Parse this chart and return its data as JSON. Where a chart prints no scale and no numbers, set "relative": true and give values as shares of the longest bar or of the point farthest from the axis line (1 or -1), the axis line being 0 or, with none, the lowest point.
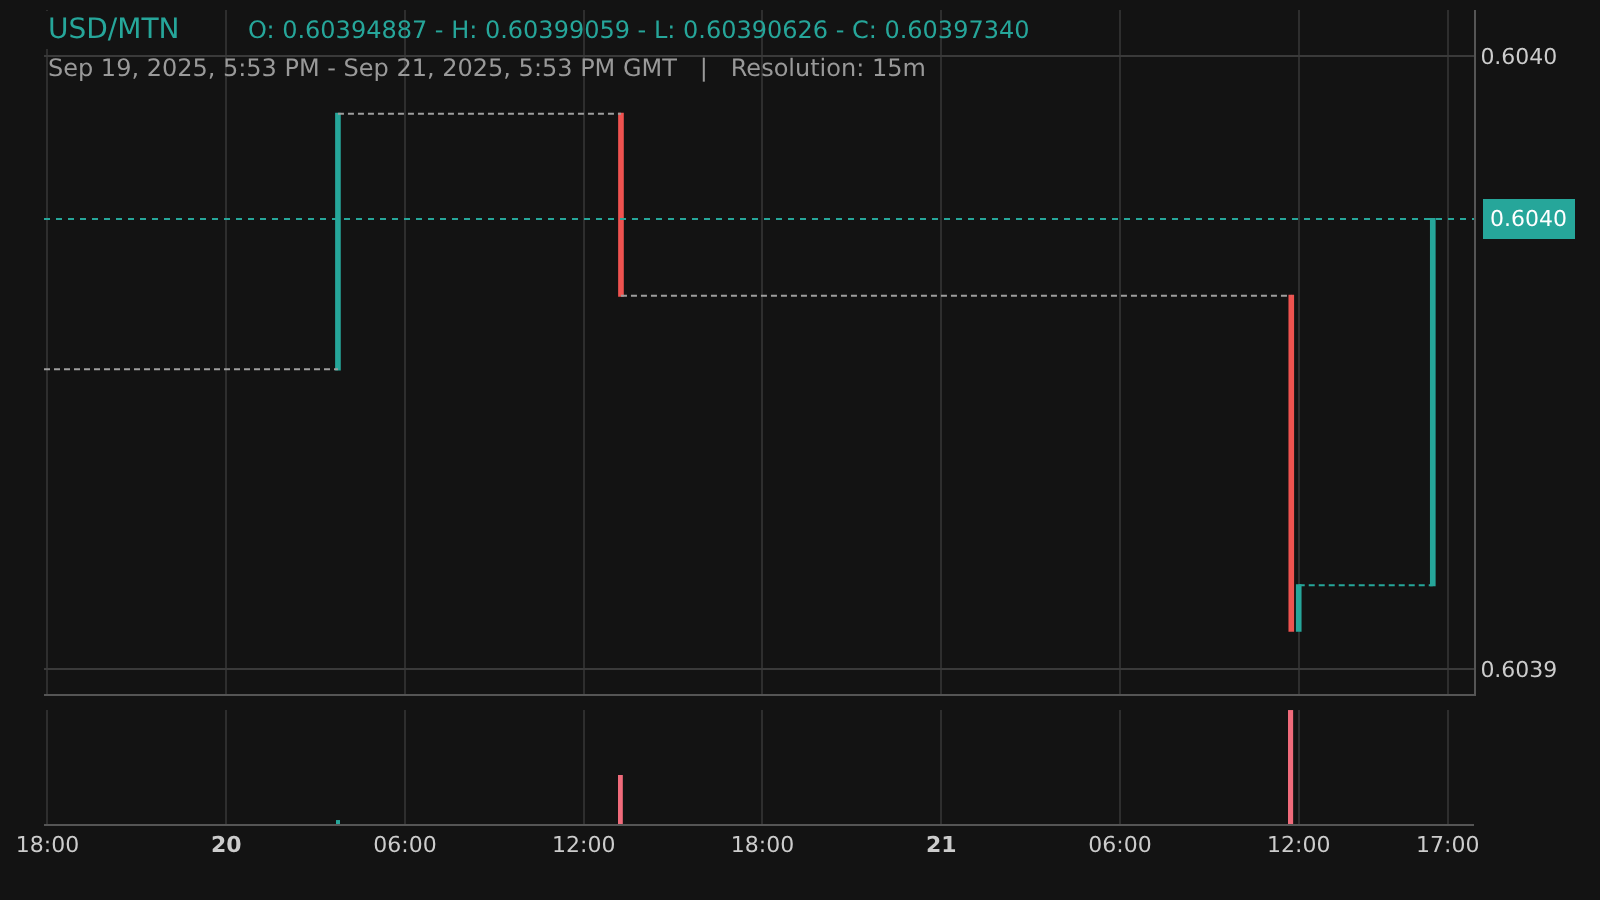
{
  "chart_data": [
    {
      "type": "candlestick",
      "title": "USD/MTN",
      "subtitle": "Sep 19, 2025, 5:53 PM - Sep 21, 2025, 5:53 PM GMT   |   Resolution: 15m",
      "annotations": [
        "O: 0.60394887 - H: 0.60399059 - L: 0.60390626 - C: 0.60397340"
      ],
      "xlim": [
        "2025-09-19T17:53",
        "2025-09-21T17:53"
      ],
      "xticks": [
        {
          "value": "2025-09-19T18:00",
          "label": null
        },
        {
          "value": "2025-09-20T00:00",
          "label": null
        },
        {
          "value": "2025-09-20T06:00",
          "label": null
        },
        {
          "value": "2025-09-20T12:00",
          "label": null
        },
        {
          "value": "2025-09-20T18:00",
          "label": null
        },
        {
          "value": "2025-09-21T00:00",
          "label": null
        },
        {
          "value": "2025-09-21T06:00",
          "label": null
        },
        {
          "value": "2025-09-21T12:00",
          "label": null
        },
        {
          "value": "2025-09-21T17:00",
          "label": null
        }
      ],
      "ylim": [
        0.603896,
        0.6040075
      ],
      "yticks": [
        {
          "value": 0.6039,
          "label": "0.6039"
        },
        {
          "value": 0.604,
          "label": "0.6040"
        }
      ],
      "grid": true,
      "tick_labels": "y",
      "ref_lines": [
        {
          "axis": "y",
          "value": 0.6039734,
          "label": "0.6040",
          "color": "#26a69a",
          "line_style": "dotted"
        }
      ],
      "series": [
        {
          "type": "line",
          "color": "#9e9e9e",
          "line_style": "dashed",
          "x": [
            "2025-09-19T17:53",
            "2025-09-20T03:45"
          ],
          "values": [
            0.6039489,
            0.6039489
          ]
        },
        {
          "type": "line",
          "color": "#9e9e9e",
          "line_style": "dashed",
          "x": [
            "2025-09-20T03:45",
            "2025-09-20T13:15"
          ],
          "values": [
            0.6039906,
            0.6039906
          ]
        },
        {
          "type": "line",
          "color": "#9e9e9e",
          "line_style": "dashed",
          "x": [
            "2025-09-20T13:15",
            "2025-09-21T11:45"
          ],
          "values": [
            0.6039609,
            0.6039609
          ]
        },
        {
          "type": "line",
          "color": "#26a69a",
          "line_style": "dashed",
          "x": [
            "2025-09-21T12:00",
            "2025-09-21T16:30"
          ],
          "values": [
            0.6039137,
            0.6039137
          ]
        },
        {
          "type": "candlestick",
          "x": [
            "2025-09-20T03:45",
            "2025-09-20T13:15",
            "2025-09-21T11:45",
            "2025-09-21T12:00",
            "2025-09-21T16:30"
          ],
          "ohlc": [
            [
              0.60394887,
              0.60399059,
              0.60394887,
              0.60399059
            ],
            [
              0.60399059,
              0.60399059,
              0.6039609,
              0.6039609
            ],
            [
              0.6039609,
              0.6039609,
              0.60390626,
              0.60390626
            ],
            [
              0.60390626,
              0.6039137,
              0.60390626,
              0.6039137
            ],
            [
              0.6039137,
              0.6039734,
              0.6039137,
              0.6039734
            ]
          ]
        }
      ]
    },
    {
      "type": "bar",
      "relative": true,
      "xlim": [
        "2025-09-19T17:53",
        "2025-09-21T17:53"
      ],
      "xticks": [
        {
          "value": "2025-09-19T18:00",
          "label": "18:00"
        },
        {
          "value": "2025-09-20T00:00",
          "label": "20"
        },
        {
          "value": "2025-09-20T06:00",
          "label": "06:00"
        },
        {
          "value": "2025-09-20T12:00",
          "label": "12:00"
        },
        {
          "value": "2025-09-20T18:00",
          "label": "18:00"
        },
        {
          "value": "2025-09-21T00:00",
          "label": "21"
        },
        {
          "value": "2025-09-21T06:00",
          "label": "06:00"
        },
        {
          "value": "2025-09-21T12:00",
          "label": "12:00"
        },
        {
          "value": "2025-09-21T17:00",
          "label": "17:00"
        }
      ],
      "tick_labels": "x",
      "grid": "x",
      "x": [
        "2025-09-20T03:45",
        "2025-09-20T13:15",
        "2025-09-21T11:45"
      ],
      "values": [
        0.03,
        0.43,
        1.0
      ],
      "colors": [
        "#26a69a",
        "#f06b7b",
        "#f06b7b"
      ]
    }
  ]
}
